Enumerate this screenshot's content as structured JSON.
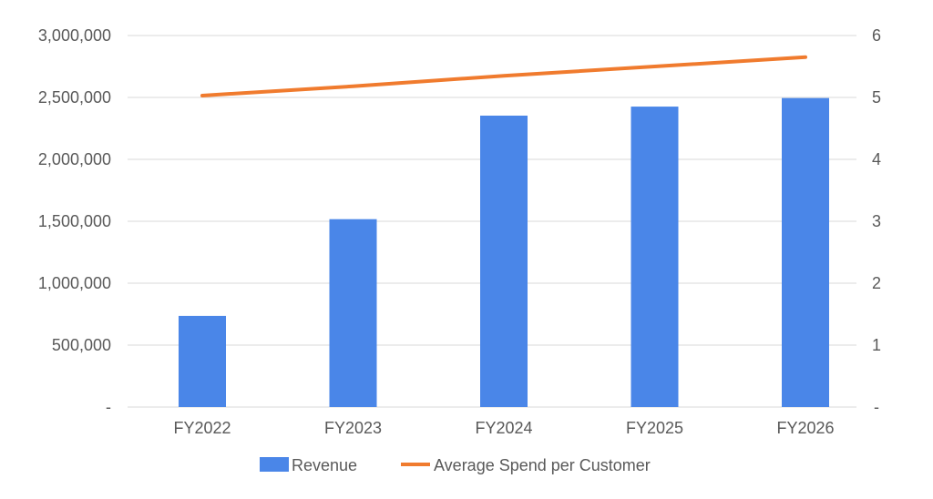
{
  "chart_data": {
    "type": "bar+line",
    "title": "",
    "categories": [
      "FY2022",
      "FY2023",
      "FY2024",
      "FY2025",
      "FY2026"
    ],
    "series": [
      {
        "name": "Revenue",
        "type": "bar",
        "axis": "left",
        "color": "#4A86E8",
        "values": [
          736000,
          1517000,
          2353000,
          2426000,
          2495000
        ]
      },
      {
        "name": "Average Spend per Customer",
        "type": "line",
        "axis": "right",
        "color": "#F07B2E",
        "values": [
          5.03,
          5.18,
          5.35,
          5.5,
          5.65
        ]
      }
    ],
    "left_axis": {
      "ylim": [
        0,
        3000000
      ],
      "ticks": [
        "-",
        "500,000",
        "1,000,000",
        "1,500,000",
        "2,000,000",
        "2,500,000",
        "3,000,000"
      ]
    },
    "right_axis": {
      "ylim": [
        0,
        6
      ],
      "ticks": [
        "-",
        "1",
        "2",
        "3",
        "4",
        "5",
        "6"
      ]
    },
    "grid": true,
    "legend": "bottom"
  }
}
